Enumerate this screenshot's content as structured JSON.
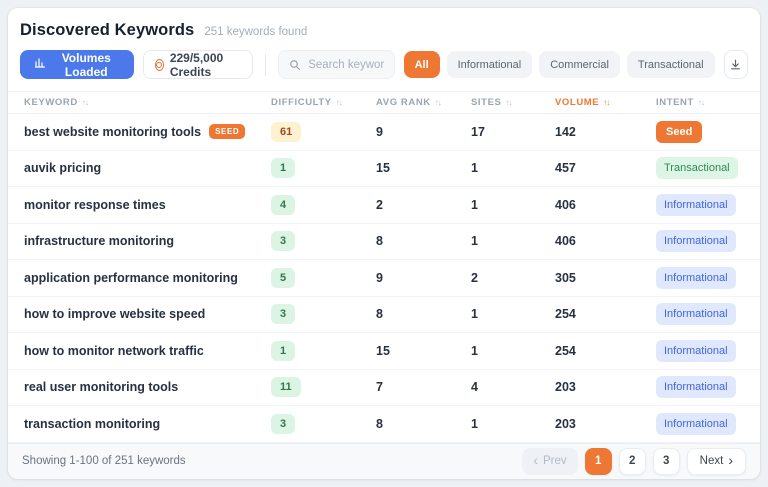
{
  "colors": {
    "accent_blue": "#4b79ec",
    "accent_orange": "#ee7733",
    "difficulty_easy_bg": "#dcf4e3",
    "difficulty_easy_text": "#2f7a4d",
    "difficulty_medium_bg": "#fcf2cf",
    "difficulty_medium_text": "#9a4a26",
    "intent_informational_bg": "#dfe8fc",
    "intent_informational_text": "#4166e0",
    "intent_transactional_bg": "#ddf5e5",
    "intent_transactional_text": "#2f8a57"
  },
  "header": {
    "title": "Discovered Keywords",
    "subtitle": "251 keywords found"
  },
  "toolbar": {
    "volumes_button": "Volumes Loaded",
    "credits": "229/5,000 Credits",
    "search_placeholder": "Search keywords...",
    "filters": [
      {
        "label": "All",
        "active": true
      },
      {
        "label": "Informational",
        "active": false
      },
      {
        "label": "Commercial",
        "active": false
      },
      {
        "label": "Transactional",
        "active": false
      }
    ]
  },
  "table": {
    "columns": [
      "Keyword",
      "Difficulty",
      "Avg Rank",
      "Sites",
      "Volume",
      "Intent"
    ],
    "sorted_column": "Volume",
    "rows": [
      {
        "keyword": "best website monitoring tools",
        "tag": "SEED",
        "difficulty": "61",
        "difficulty_level": "medium",
        "avg_rank": "9",
        "sites": "17",
        "volume": "142",
        "intent": "Seed",
        "intent_type": "seed"
      },
      {
        "keyword": "auvik pricing",
        "tag": "",
        "difficulty": "1",
        "difficulty_level": "easy",
        "avg_rank": "15",
        "sites": "1",
        "volume": "457",
        "intent": "Transactional",
        "intent_type": "transactional"
      },
      {
        "keyword": "monitor response times",
        "tag": "",
        "difficulty": "4",
        "difficulty_level": "easy",
        "avg_rank": "2",
        "sites": "1",
        "volume": "406",
        "intent": "Informational",
        "intent_type": "informational"
      },
      {
        "keyword": "infrastructure monitoring",
        "tag": "",
        "difficulty": "3",
        "difficulty_level": "easy",
        "avg_rank": "8",
        "sites": "1",
        "volume": "406",
        "intent": "Informational",
        "intent_type": "informational"
      },
      {
        "keyword": "application performance monitoring",
        "tag": "",
        "difficulty": "5",
        "difficulty_level": "easy",
        "avg_rank": "9",
        "sites": "2",
        "volume": "305",
        "intent": "Informational",
        "intent_type": "informational"
      },
      {
        "keyword": "how to improve website speed",
        "tag": "",
        "difficulty": "3",
        "difficulty_level": "easy",
        "avg_rank": "8",
        "sites": "1",
        "volume": "254",
        "intent": "Informational",
        "intent_type": "informational"
      },
      {
        "keyword": "how to monitor network traffic",
        "tag": "",
        "difficulty": "1",
        "difficulty_level": "easy",
        "avg_rank": "15",
        "sites": "1",
        "volume": "254",
        "intent": "Informational",
        "intent_type": "informational"
      },
      {
        "keyword": "real user monitoring tools",
        "tag": "",
        "difficulty": "11",
        "difficulty_level": "easy",
        "avg_rank": "7",
        "sites": "4",
        "volume": "203",
        "intent": "Informational",
        "intent_type": "informational"
      },
      {
        "keyword": "transaction monitoring",
        "tag": "",
        "difficulty": "3",
        "difficulty_level": "easy",
        "avg_rank": "8",
        "sites": "1",
        "volume": "203",
        "intent": "Informational",
        "intent_type": "informational"
      }
    ]
  },
  "footer": {
    "summary": "Showing 1-100 of 251 keywords",
    "prev_label": "Prev",
    "next_label": "Next",
    "pages": [
      "1",
      "2",
      "3"
    ],
    "active_page": "1"
  }
}
